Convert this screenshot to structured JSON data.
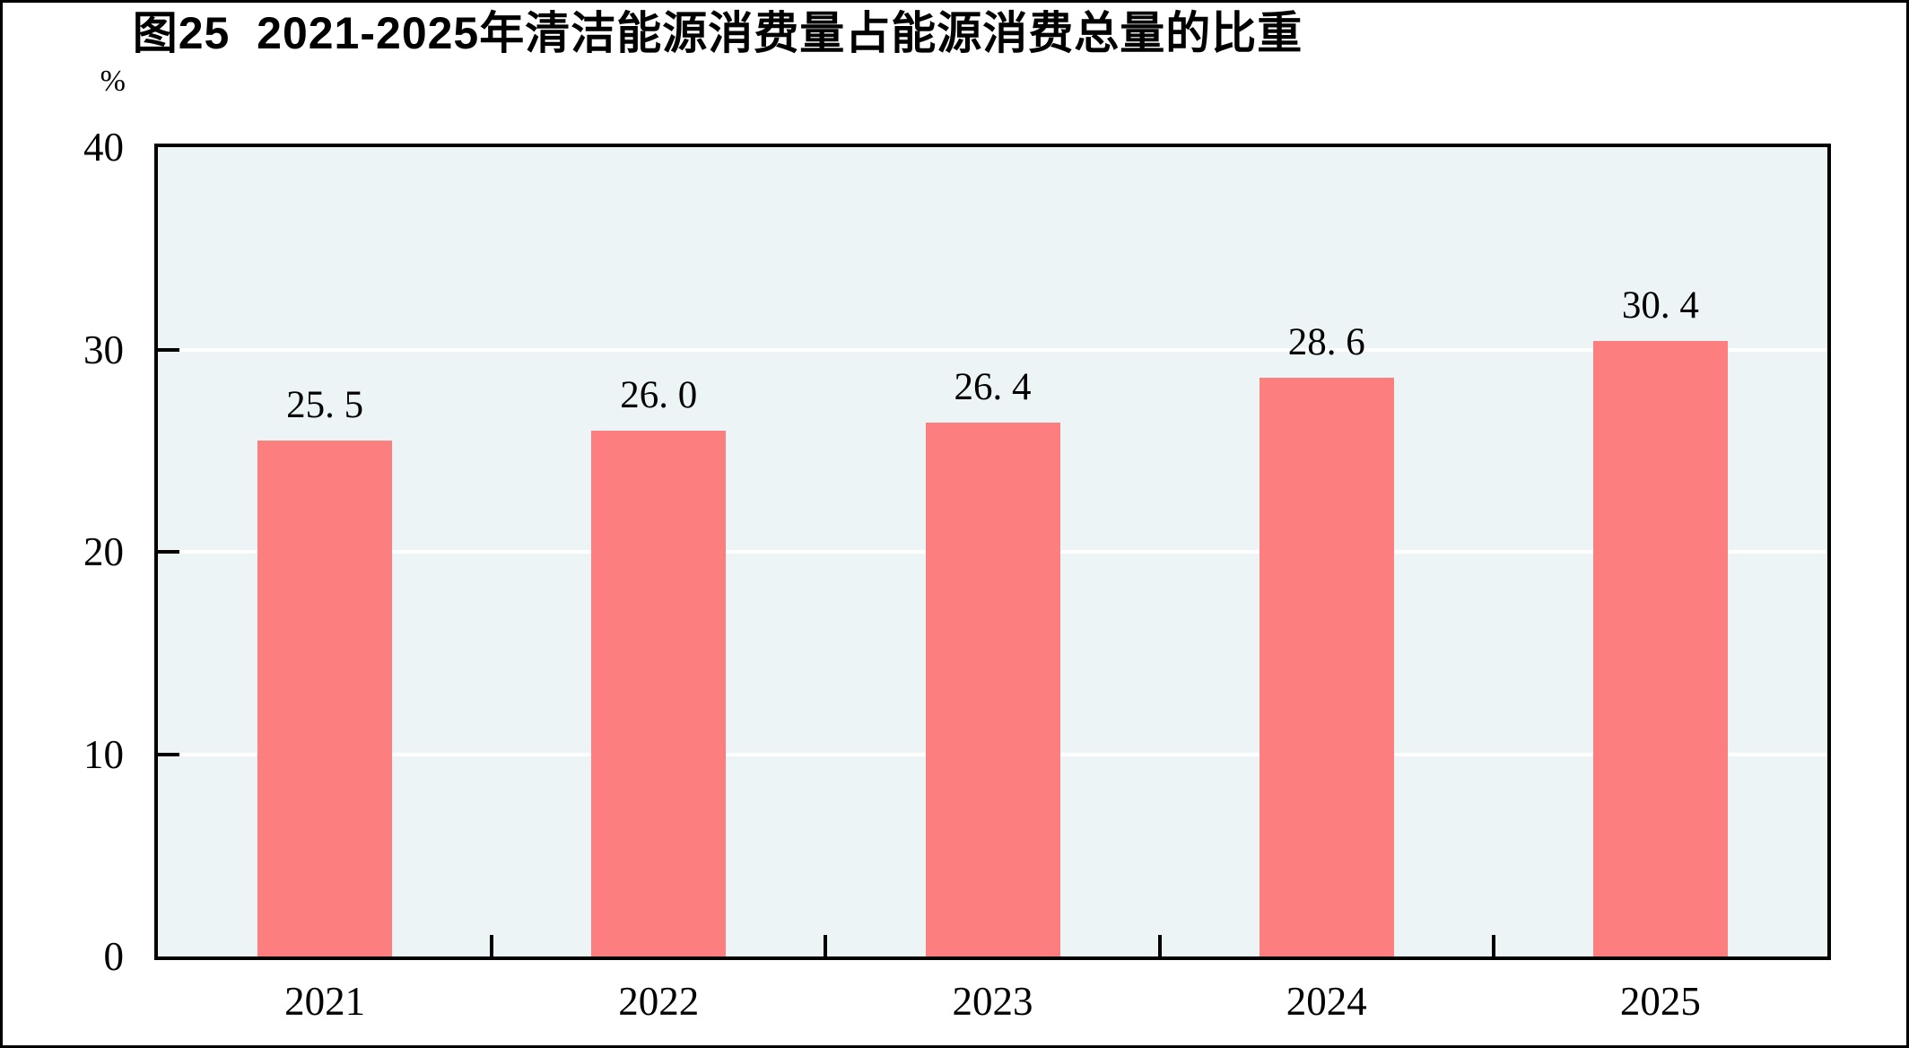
{
  "title": "图25  2021-2025年清洁能源消费量占能源消费总量的比重",
  "unit_label": "%",
  "colors": {
    "bar": "#fc7e7e",
    "plot_background": "#edf4f6",
    "gridline": "#ffffff",
    "axis": "#000000",
    "text": "#000000"
  },
  "chart_data": {
    "type": "bar",
    "title": "图25  2021-2025年清洁能源消费量占能源消费总量的比重",
    "categories": [
      "2021",
      "2022",
      "2023",
      "2024",
      "2025"
    ],
    "values": [
      25.5,
      26.0,
      26.4,
      28.6,
      30.4
    ],
    "value_labels": [
      "25. 5",
      "26. 0",
      "26. 4",
      "28. 6",
      "30. 4"
    ],
    "xlabel": "",
    "ylabel": "%",
    "ylim": [
      0,
      40
    ],
    "yticks": [
      0,
      10,
      20,
      30,
      40
    ],
    "grid": true,
    "legend_position": "none"
  }
}
